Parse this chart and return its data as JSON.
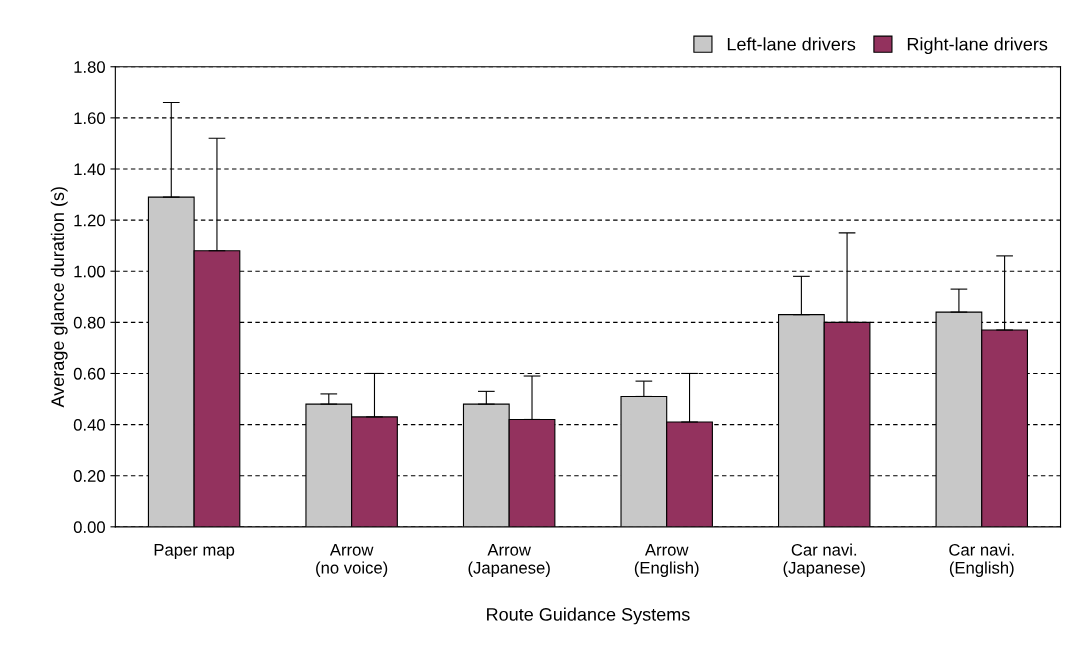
{
  "chart_data": {
    "type": "bar",
    "xlabel": "Route Guidance Systems",
    "ylabel": "Average glance duration (s)",
    "categories": [
      "Paper map",
      "Arrow\n(no voice)",
      "Arrow\n(Japanese)",
      "Arrow\n(English)",
      "Car navi.\n(Japanese)",
      "Car navi.\n(English)"
    ],
    "series": [
      {
        "name": "Left-lane drivers",
        "color": "#c8c8c8",
        "values": [
          1.29,
          0.48,
          0.48,
          0.51,
          0.83,
          0.84
        ],
        "errors": [
          [
            1.29,
            1.66
          ],
          [
            0.48,
            0.52
          ],
          [
            0.48,
            0.53
          ],
          [
            0.51,
            0.57
          ],
          [
            0.83,
            0.98
          ],
          [
            0.84,
            0.93
          ]
        ]
      },
      {
        "name": "Right-lane drivers",
        "color": "#93325e",
        "values": [
          1.08,
          0.43,
          0.42,
          0.41,
          0.8,
          0.77
        ],
        "errors": [
          [
            1.08,
            1.52
          ],
          [
            0.43,
            0.6
          ],
          [
            0.42,
            0.59
          ],
          [
            0.41,
            0.6
          ],
          [
            0.8,
            1.15
          ],
          [
            0.77,
            1.06
          ]
        ]
      }
    ],
    "ylim": [
      0,
      1.8
    ],
    "yticks": [
      {
        "value": 0,
        "label": "0.00"
      },
      {
        "value": 0.2,
        "label": "0.20"
      },
      {
        "value": 0.4,
        "label": "0.40"
      },
      {
        "value": 0.6,
        "label": "0.60"
      },
      {
        "value": 0.8,
        "label": "0.80"
      },
      {
        "value": 1.0,
        "label": "1.00"
      },
      {
        "value": 1.2,
        "label": "1.20"
      },
      {
        "value": 1.4,
        "label": "1.40"
      },
      {
        "value": 1.6,
        "label": "1.60"
      },
      {
        "value": 1.8,
        "label": "1.80"
      }
    ],
    "grid": "y",
    "legend": "top right"
  }
}
